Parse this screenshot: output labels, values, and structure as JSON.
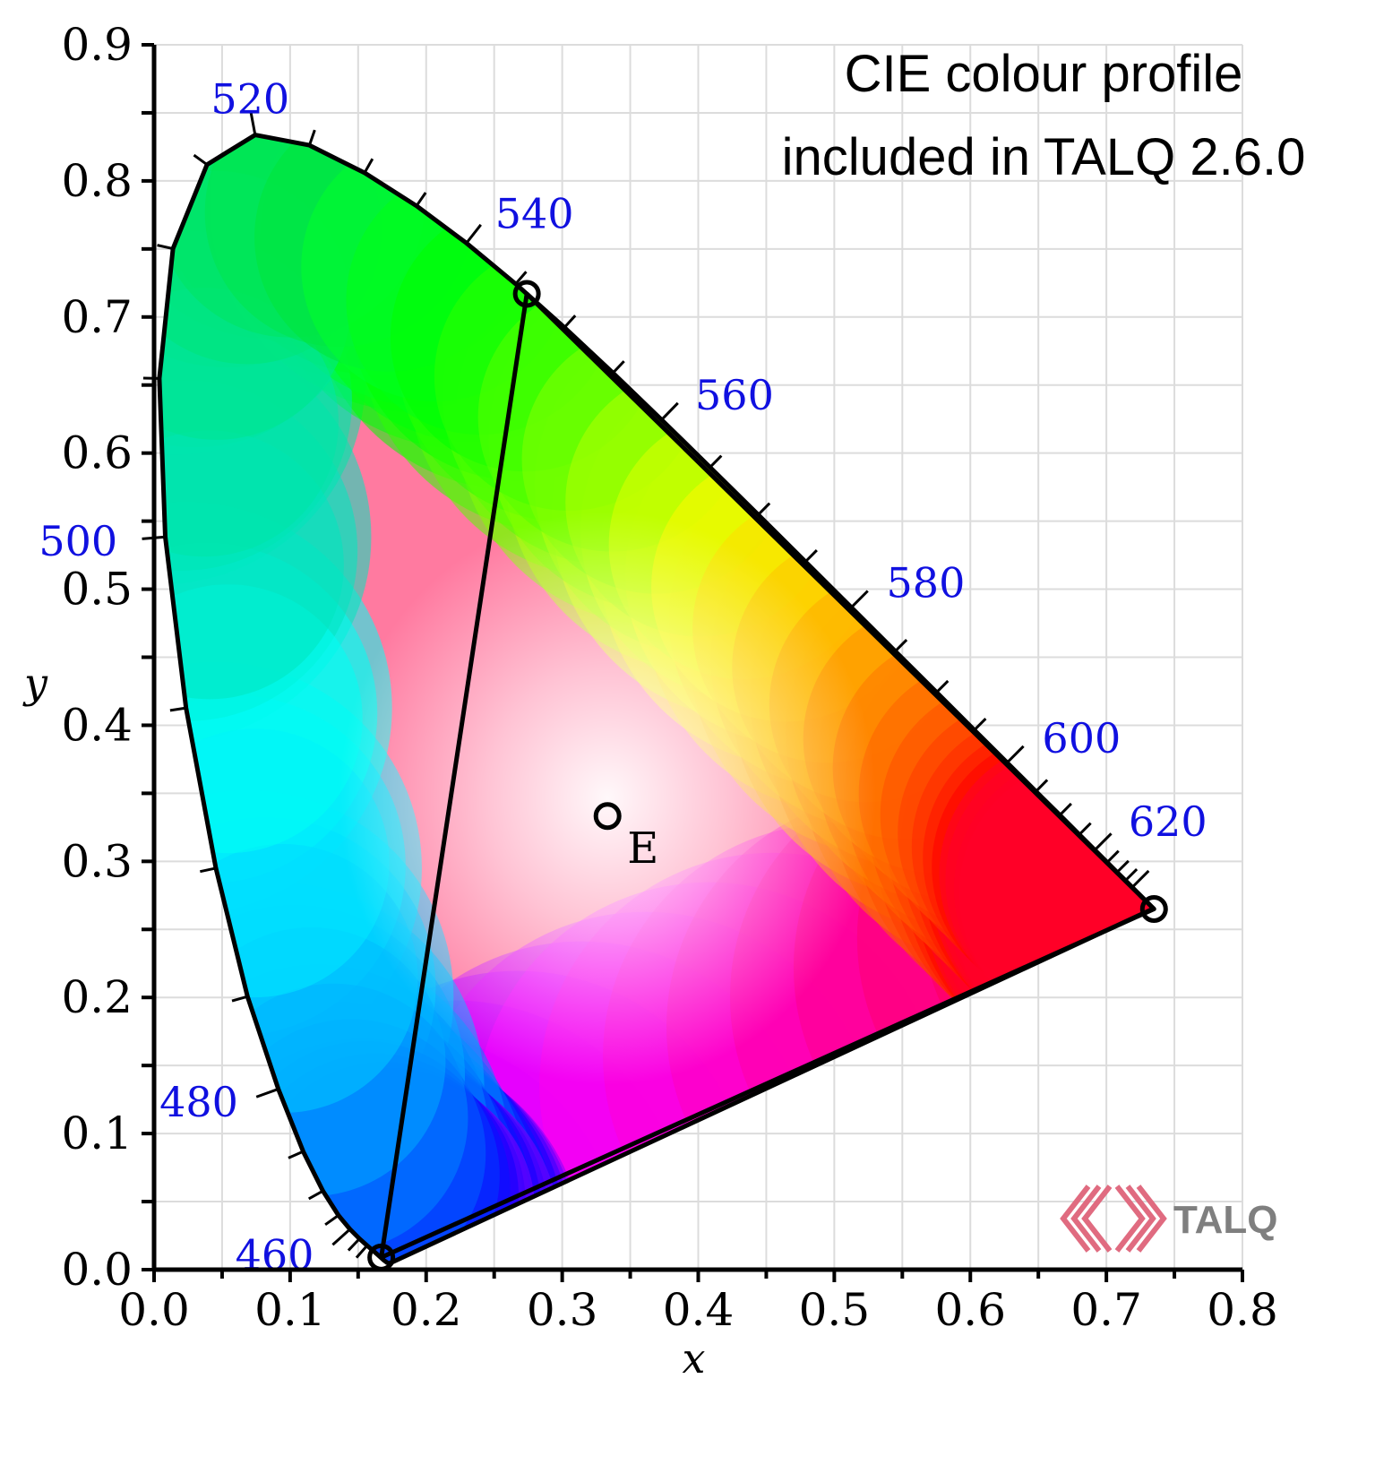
{
  "title_lines": [
    "CIE colour profile",
    "included in TALQ 2.6.0"
  ],
  "logo": {
    "text": "TALQ",
    "color": "#e06b80"
  },
  "chart_data": {
    "type": "scatter",
    "title": "CIE colour profile included in TALQ 2.6.0",
    "xlabel": "x",
    "ylabel": "y",
    "xlim": [
      0,
      0.8
    ],
    "ylim": [
      0,
      0.9
    ],
    "xticks": [
      "0.0",
      "0.1",
      "0.2",
      "0.3",
      "0.4",
      "0.5",
      "0.6",
      "0.7",
      "0.8"
    ],
    "yticks": [
      "0.0",
      "0.1",
      "0.2",
      "0.3",
      "0.4",
      "0.5",
      "0.6",
      "0.7",
      "0.8",
      "0.9"
    ],
    "grid": true,
    "spectral_locus": [
      {
        "nm": 380,
        "x": 0.1741,
        "y": 0.005
      },
      {
        "nm": 400,
        "x": 0.1733,
        "y": 0.0048
      },
      {
        "nm": 410,
        "x": 0.1726,
        "y": 0.0048
      },
      {
        "nm": 420,
        "x": 0.1714,
        "y": 0.0051
      },
      {
        "nm": 430,
        "x": 0.1689,
        "y": 0.0069
      },
      {
        "nm": 440,
        "x": 0.1644,
        "y": 0.0109
      },
      {
        "nm": 445,
        "x": 0.1611,
        "y": 0.0138
      },
      {
        "nm": 450,
        "x": 0.1566,
        "y": 0.0177
      },
      {
        "nm": 455,
        "x": 0.151,
        "y": 0.0227
      },
      {
        "nm": 460,
        "x": 0.144,
        "y": 0.0297
      },
      {
        "nm": 465,
        "x": 0.1355,
        "y": 0.0399
      },
      {
        "nm": 470,
        "x": 0.1241,
        "y": 0.0578
      },
      {
        "nm": 475,
        "x": 0.1096,
        "y": 0.0868
      },
      {
        "nm": 480,
        "x": 0.0913,
        "y": 0.1327
      },
      {
        "nm": 485,
        "x": 0.0687,
        "y": 0.2007
      },
      {
        "nm": 490,
        "x": 0.0454,
        "y": 0.295
      },
      {
        "nm": 495,
        "x": 0.0235,
        "y": 0.4127
      },
      {
        "nm": 500,
        "x": 0.0082,
        "y": 0.5384
      },
      {
        "nm": 505,
        "x": 0.0039,
        "y": 0.6548
      },
      {
        "nm": 510,
        "x": 0.0139,
        "y": 0.7502
      },
      {
        "nm": 515,
        "x": 0.0389,
        "y": 0.812
      },
      {
        "nm": 520,
        "x": 0.0743,
        "y": 0.8338
      },
      {
        "nm": 525,
        "x": 0.1142,
        "y": 0.8262
      },
      {
        "nm": 530,
        "x": 0.1547,
        "y": 0.8059
      },
      {
        "nm": 535,
        "x": 0.1929,
        "y": 0.7816
      },
      {
        "nm": 540,
        "x": 0.2296,
        "y": 0.7543
      },
      {
        "nm": 545,
        "x": 0.2658,
        "y": 0.7243
      },
      {
        "nm": 550,
        "x": 0.3016,
        "y": 0.6923
      },
      {
        "nm": 555,
        "x": 0.3373,
        "y": 0.6589
      },
      {
        "nm": 560,
        "x": 0.3731,
        "y": 0.6245
      },
      {
        "nm": 565,
        "x": 0.4087,
        "y": 0.5896
      },
      {
        "nm": 570,
        "x": 0.4441,
        "y": 0.5547
      },
      {
        "nm": 575,
        "x": 0.4788,
        "y": 0.5202
      },
      {
        "nm": 580,
        "x": 0.5125,
        "y": 0.4866
      },
      {
        "nm": 585,
        "x": 0.5448,
        "y": 0.4544
      },
      {
        "nm": 590,
        "x": 0.5752,
        "y": 0.4242
      },
      {
        "nm": 595,
        "x": 0.6029,
        "y": 0.3965
      },
      {
        "nm": 600,
        "x": 0.627,
        "y": 0.3725
      },
      {
        "nm": 605,
        "x": 0.6482,
        "y": 0.3514
      },
      {
        "nm": 610,
        "x": 0.6658,
        "y": 0.334
      },
      {
        "nm": 615,
        "x": 0.6801,
        "y": 0.3197
      },
      {
        "nm": 620,
        "x": 0.6915,
        "y": 0.3083
      },
      {
        "nm": 625,
        "x": 0.7006,
        "y": 0.2993
      },
      {
        "nm": 630,
        "x": 0.7079,
        "y": 0.292
      },
      {
        "nm": 635,
        "x": 0.714,
        "y": 0.2859
      },
      {
        "nm": 640,
        "x": 0.719,
        "y": 0.2809
      },
      {
        "nm": 650,
        "x": 0.726,
        "y": 0.274
      },
      {
        "nm": 660,
        "x": 0.73,
        "y": 0.27
      },
      {
        "nm": 680,
        "x": 0.7334,
        "y": 0.2666
      },
      {
        "nm": 700,
        "x": 0.7347,
        "y": 0.2653
      }
    ],
    "wavelength_labels": [
      {
        "nm": 460,
        "text": "460"
      },
      {
        "nm": 480,
        "text": "480"
      },
      {
        "nm": 500,
        "text": "500"
      },
      {
        "nm": 520,
        "text": "520"
      },
      {
        "nm": 540,
        "text": "540"
      },
      {
        "nm": 560,
        "text": "560"
      },
      {
        "nm": 580,
        "text": "580"
      },
      {
        "nm": 600,
        "text": "600"
      },
      {
        "nm": 620,
        "text": "620"
      }
    ],
    "gamut_triangle": [
      {
        "name": "green",
        "x": 0.274,
        "y": 0.717
      },
      {
        "name": "red",
        "x": 0.735,
        "y": 0.265
      },
      {
        "name": "blue",
        "x": 0.167,
        "y": 0.009
      }
    ],
    "white_point": {
      "label": "E",
      "x": 0.3333,
      "y": 0.3333
    }
  }
}
